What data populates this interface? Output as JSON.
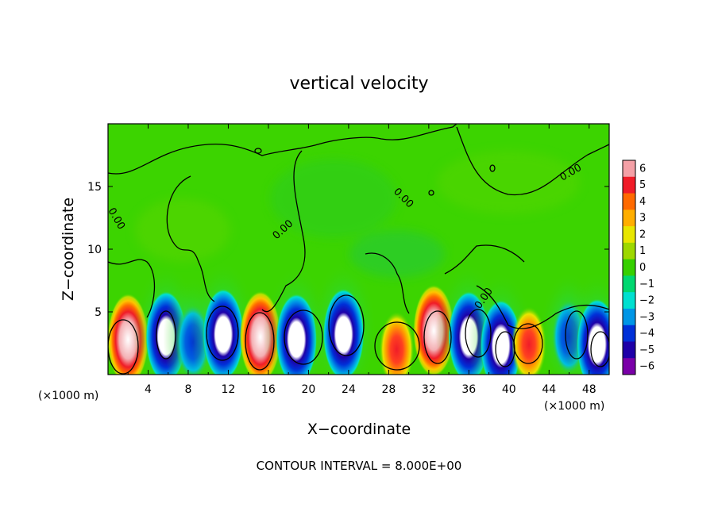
{
  "chart_data": {
    "type": "heatmap",
    "title": "vertical velocity",
    "xlabel": "X−coordinate",
    "ylabel": "Z−coordinate",
    "x_unit_left": "(×1000 m)",
    "x_unit_right": "(×1000 m)",
    "xlim": [
      0,
      50
    ],
    "ylim": [
      0,
      20
    ],
    "xticks": [
      "4",
      "8",
      "12",
      "16",
      "20",
      "24",
      "28",
      "32",
      "36",
      "40",
      "44",
      "48"
    ],
    "xtick_values": [
      4,
      8,
      12,
      16,
      20,
      24,
      28,
      32,
      36,
      40,
      44,
      48
    ],
    "yticks": [
      "5",
      "10",
      "15"
    ],
    "ytick_values": [
      5,
      10,
      15
    ],
    "colorbar": {
      "ticks": [
        "6",
        "5",
        "4",
        "3",
        "2",
        "1",
        "0",
        "−1",
        "−2",
        "−3",
        "−4",
        "−5",
        "−6"
      ],
      "tick_values": [
        6,
        5,
        4,
        3,
        2,
        1,
        0,
        -1,
        -2,
        -3,
        -4,
        -5,
        -6
      ],
      "colors": [
        "#f4a0a6",
        "#f01c28",
        "#ff6a00",
        "#ffae00",
        "#e8e600",
        "#9ed800",
        "#36d000",
        "#00d870",
        "#00e0d0",
        "#0096e6",
        "#0030d8",
        "#1e00a8",
        "#7a00a8"
      ]
    },
    "contour_label": "0.00",
    "footnote": "CONTOUR INTERVAL = 8.000E+00",
    "cells": [
      {
        "x": 2.0,
        "z": 2.8,
        "value": 8
      },
      {
        "x": 5.8,
        "z": 3.0,
        "value": -6
      },
      {
        "x": 8.5,
        "z": 2.6,
        "value": -2
      },
      {
        "x": 11.5,
        "z": 3.2,
        "value": -6
      },
      {
        "x": 15.2,
        "z": 3.0,
        "value": 8
      },
      {
        "x": 18.8,
        "z": 2.8,
        "value": -6
      },
      {
        "x": 23.5,
        "z": 3.2,
        "value": -6
      },
      {
        "x": 28.8,
        "z": 2.0,
        "value": 5
      },
      {
        "x": 32.5,
        "z": 3.5,
        "value": 8
      },
      {
        "x": 36.0,
        "z": 3.0,
        "value": -6
      },
      {
        "x": 39.2,
        "z": 2.3,
        "value": -6
      },
      {
        "x": 42.0,
        "z": 2.4,
        "value": 5
      },
      {
        "x": 46.0,
        "z": 3.0,
        "value": -5
      },
      {
        "x": 48.8,
        "z": 2.4,
        "value": -6
      }
    ]
  }
}
